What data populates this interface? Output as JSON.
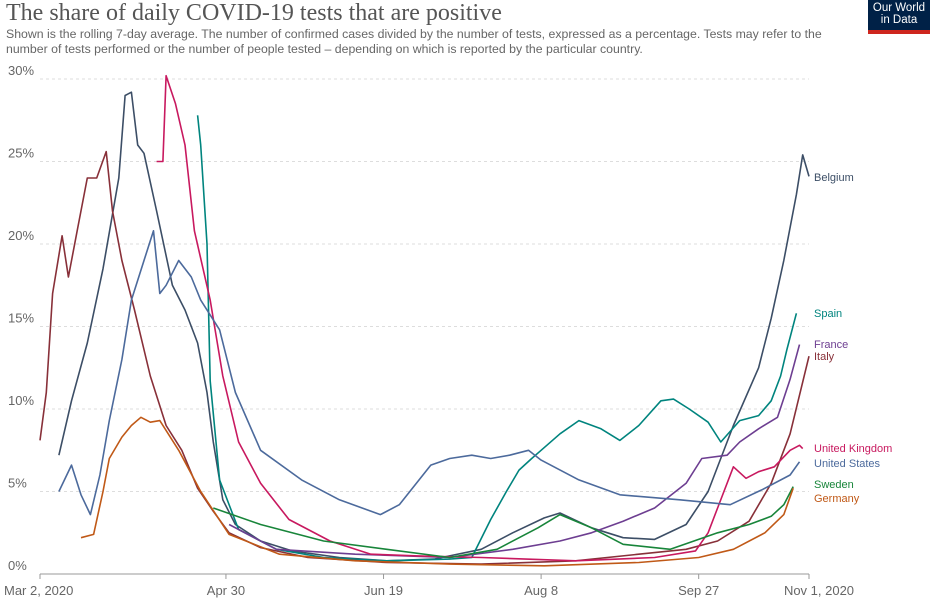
{
  "header": {
    "title": "The share of daily COVID-19 tests that are positive",
    "subtitle": "Shown is the rolling 7-day average. The number of confirmed cases divided by the number of tests, expressed as a percentage. Tests may refer to the number of tests performed or the number of people tested – depending on which is reported by the particular country.",
    "logo": "Our World in Data"
  },
  "chart_data": {
    "type": "line",
    "title": "The share of daily COVID-19 tests that are positive",
    "xlabel": "",
    "ylabel": "",
    "x_unit": "days since Mar 2, 2020",
    "xlim": [
      0,
      244
    ],
    "ylim": [
      0,
      30
    ],
    "yticks": [
      0,
      5,
      10,
      15,
      20,
      25,
      30
    ],
    "ytick_labels": [
      "0%",
      "5%",
      "10%",
      "15%",
      "20%",
      "25%",
      "30%"
    ],
    "xticks": [
      0,
      59,
      109,
      159,
      209,
      244
    ],
    "xtick_labels": [
      "Mar 2, 2020",
      "Apr 30",
      "Jun 19",
      "Aug 8",
      "Sep 27",
      "Nov 1, 2020"
    ],
    "grid": true,
    "legend": "right, inline labels",
    "series": [
      {
        "name": "Belgium",
        "color": "#3c4e66",
        "points": [
          [
            6,
            7.2
          ],
          [
            10,
            10.5
          ],
          [
            15,
            14
          ],
          [
            20,
            18.5
          ],
          [
            25,
            24
          ],
          [
            27,
            29
          ],
          [
            29,
            29.2
          ],
          [
            31,
            26
          ],
          [
            33,
            25.5
          ],
          [
            37,
            22
          ],
          [
            42,
            17.5
          ],
          [
            46,
            16
          ],
          [
            50,
            14
          ],
          [
            53,
            11
          ],
          [
            55,
            8
          ],
          [
            58,
            4.5
          ],
          [
            62,
            3
          ],
          [
            70,
            2
          ],
          [
            80,
            1.4
          ],
          [
            95,
            1
          ],
          [
            110,
            0.8
          ],
          [
            125,
            0.9
          ],
          [
            140,
            1.5
          ],
          [
            150,
            2.5
          ],
          [
            160,
            3.4
          ],
          [
            165,
            3.7
          ],
          [
            175,
            2.8
          ],
          [
            185,
            2.2
          ],
          [
            195,
            2.1
          ],
          [
            205,
            3
          ],
          [
            212,
            5
          ],
          [
            220,
            9
          ],
          [
            228,
            12.5
          ],
          [
            232,
            15.5
          ],
          [
            236,
            19
          ],
          [
            240,
            23
          ],
          [
            242,
            25.4
          ],
          [
            244,
            24.1
          ]
        ]
      },
      {
        "name": "Spain",
        "color": "#00847e",
        "points": [
          [
            50,
            27.8
          ],
          [
            51,
            26
          ],
          [
            53,
            20
          ],
          [
            54,
            11.7
          ],
          [
            57,
            5.7
          ],
          [
            63,
            2.7
          ],
          [
            75,
            1.5
          ],
          [
            90,
            1
          ],
          [
            110,
            0.8
          ],
          [
            130,
            0.9
          ],
          [
            137,
            1
          ],
          [
            143,
            3.3
          ],
          [
            148,
            5
          ],
          [
            152,
            6.3
          ],
          [
            156,
            7
          ],
          [
            159,
            7.5
          ],
          [
            165,
            8.5
          ],
          [
            171,
            9.3
          ],
          [
            178,
            8.8
          ],
          [
            184,
            8.1
          ],
          [
            190,
            9
          ],
          [
            197,
            10.5
          ],
          [
            201,
            10.6
          ],
          [
            206,
            10
          ],
          [
            212,
            9.2
          ],
          [
            216,
            8
          ],
          [
            222,
            9.3
          ],
          [
            228,
            9.6
          ],
          [
            232,
            10.5
          ],
          [
            235,
            12
          ],
          [
            237,
            13.6
          ],
          [
            240,
            15.8
          ]
        ]
      },
      {
        "name": "France",
        "color": "#6d3e91",
        "points": [
          [
            60,
            3
          ],
          [
            75,
            1.5
          ],
          [
            100,
            1.2
          ],
          [
            130,
            1
          ],
          [
            150,
            1.5
          ],
          [
            165,
            2
          ],
          [
            175,
            2.5
          ],
          [
            185,
            3.2
          ],
          [
            195,
            4
          ],
          [
            205,
            5.5
          ],
          [
            210,
            7
          ],
          [
            218,
            7.2
          ],
          [
            222,
            8
          ],
          [
            228,
            8.8
          ],
          [
            234,
            9.5
          ],
          [
            238,
            11.8
          ],
          [
            241,
            13.9
          ]
        ]
      },
      {
        "name": "Italy",
        "color": "#883039",
        "points": [
          [
            0,
            8.1
          ],
          [
            2,
            11
          ],
          [
            4,
            17
          ],
          [
            7,
            20.5
          ],
          [
            9,
            18
          ],
          [
            12,
            21
          ],
          [
            15,
            24
          ],
          [
            18,
            24
          ],
          [
            21,
            25.6
          ],
          [
            23,
            22
          ],
          [
            26,
            19
          ],
          [
            30,
            16
          ],
          [
            35,
            12
          ],
          [
            40,
            9
          ],
          [
            45,
            7.5
          ],
          [
            50,
            5.2
          ],
          [
            55,
            3.8
          ],
          [
            60,
            2.5
          ],
          [
            70,
            1.6
          ],
          [
            85,
            1
          ],
          [
            110,
            0.7
          ],
          [
            140,
            0.6
          ],
          [
            170,
            0.8
          ],
          [
            190,
            1.2
          ],
          [
            205,
            1.5
          ],
          [
            215,
            2
          ],
          [
            225,
            3.2
          ],
          [
            232,
            5.5
          ],
          [
            238,
            8.5
          ],
          [
            244,
            13.2
          ]
        ]
      },
      {
        "name": "United Kingdom",
        "color": "#c8195f",
        "points": [
          [
            37,
            25
          ],
          [
            39,
            25
          ],
          [
            40,
            30.2
          ],
          [
            43,
            28.5
          ],
          [
            46,
            26
          ],
          [
            49,
            20.8
          ],
          [
            54,
            16.6
          ],
          [
            58,
            12
          ],
          [
            63,
            8
          ],
          [
            70,
            5.5
          ],
          [
            79,
            3.3
          ],
          [
            92,
            2
          ],
          [
            105,
            1.2
          ],
          [
            120,
            1.1
          ],
          [
            140,
            1
          ],
          [
            170,
            0.8
          ],
          [
            195,
            1
          ],
          [
            208,
            1.4
          ],
          [
            212,
            2.5
          ],
          [
            215,
            4
          ],
          [
            220,
            6.5
          ],
          [
            224,
            5.8
          ],
          [
            228,
            6.2
          ],
          [
            233,
            6.5
          ],
          [
            238,
            7.5
          ],
          [
            241,
            7.8
          ],
          [
            242,
            7.6
          ]
        ]
      },
      {
        "name": "United States",
        "color": "#4c6a9c",
        "points": [
          [
            6,
            5
          ],
          [
            10,
            6.6
          ],
          [
            13,
            4.8
          ],
          [
            16,
            3.6
          ],
          [
            19,
            6
          ],
          [
            22,
            9.3
          ],
          [
            26,
            13
          ],
          [
            29,
            16.6
          ],
          [
            33,
            19
          ],
          [
            36,
            20.8
          ],
          [
            38,
            17
          ],
          [
            40,
            17.5
          ],
          [
            44,
            19
          ],
          [
            48,
            18
          ],
          [
            51,
            16.6
          ],
          [
            57,
            14.8
          ],
          [
            62,
            11
          ],
          [
            70,
            7.5
          ],
          [
            83,
            5.7
          ],
          [
            95,
            4.5
          ],
          [
            108,
            3.6
          ],
          [
            114,
            4.2
          ],
          [
            124,
            6.6
          ],
          [
            130,
            7
          ],
          [
            137,
            7.2
          ],
          [
            143,
            7
          ],
          [
            149,
            7.2
          ],
          [
            155,
            7.5
          ],
          [
            159,
            6.9
          ],
          [
            171,
            5.7
          ],
          [
            184,
            4.8
          ],
          [
            203,
            4.5
          ],
          [
            219,
            4.2
          ],
          [
            229,
            5.1
          ],
          [
            238,
            6
          ],
          [
            241,
            6.8
          ]
        ]
      },
      {
        "name": "Sweden",
        "color": "#18853a",
        "points": [
          [
            55,
            4
          ],
          [
            70,
            3
          ],
          [
            90,
            2
          ],
          [
            110,
            1.5
          ],
          [
            130,
            1
          ],
          [
            145,
            1.5
          ],
          [
            158,
            2.8
          ],
          [
            165,
            3.6
          ],
          [
            175,
            2.8
          ],
          [
            185,
            1.8
          ],
          [
            200,
            1.5
          ],
          [
            215,
            2.5
          ],
          [
            225,
            3
          ],
          [
            232,
            3.5
          ],
          [
            236,
            4.2
          ],
          [
            239,
            5.3
          ]
        ]
      },
      {
        "name": "Germany",
        "color": "#c05917",
        "points": [
          [
            13,
            2.2
          ],
          [
            17,
            2.4
          ],
          [
            20,
            5
          ],
          [
            22,
            7
          ],
          [
            26,
            8.3
          ],
          [
            29,
            9
          ],
          [
            32,
            9.5
          ],
          [
            35,
            9.2
          ],
          [
            38,
            9.3
          ],
          [
            44,
            7.5
          ],
          [
            51,
            5
          ],
          [
            60,
            2.4
          ],
          [
            76,
            1.2
          ],
          [
            100,
            0.8
          ],
          [
            130,
            0.6
          ],
          [
            160,
            0.5
          ],
          [
            190,
            0.7
          ],
          [
            209,
            1
          ],
          [
            220,
            1.5
          ],
          [
            230,
            2.5
          ],
          [
            236,
            3.6
          ],
          [
            239,
            5.2
          ]
        ]
      }
    ]
  }
}
